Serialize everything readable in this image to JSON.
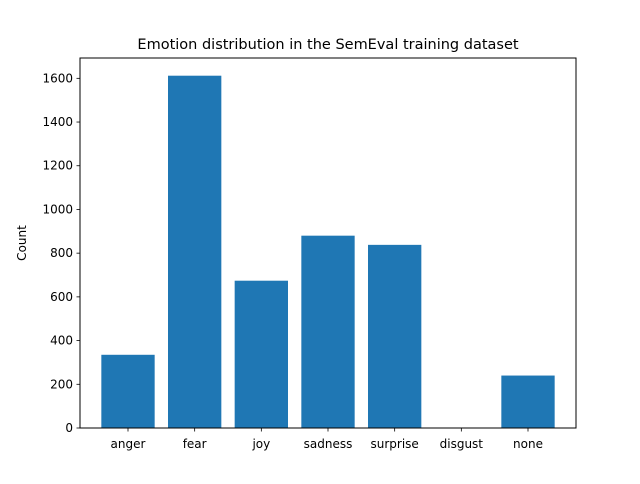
{
  "chart_data": {
    "type": "bar",
    "title": "Emotion distribution in the SemEval training dataset",
    "xlabel": "",
    "ylabel": "Count",
    "categories": [
      "anger",
      "fear",
      "joy",
      "sadness",
      "surprise",
      "disgust",
      "none"
    ],
    "values": [
      335,
      1612,
      674,
      880,
      838,
      1,
      240
    ],
    "ylim": [
      0,
      1693
    ],
    "yticks": [
      0,
      200,
      400,
      600,
      800,
      1000,
      1200,
      1400,
      1600
    ],
    "bar_color": "#1f77b4",
    "grid": false,
    "legend": "none"
  }
}
